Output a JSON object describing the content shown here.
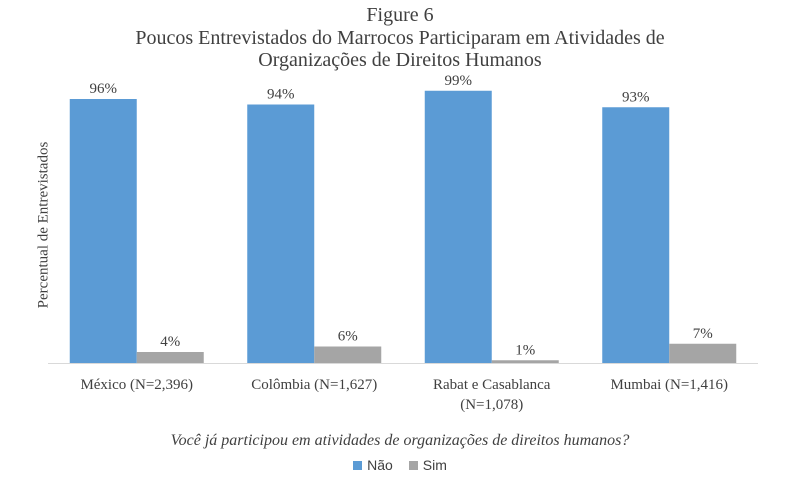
{
  "chart_data": {
    "type": "bar",
    "title": "Figure 6",
    "subtitle_lines": [
      "Poucos Entrevistados do Marrocos Participaram em Atividades  de",
      "Organizações de Direitos Humanos"
    ],
    "ylabel": "Percentual de Entrevistados",
    "xlabel": "Você já participou em atividades de organizações de direitos humanos?",
    "categories": [
      [
        "México (N=2,396)"
      ],
      [
        "Colômbia (N=1,627)"
      ],
      [
        "Rabat e Casablanca",
        "(N=1,078)"
      ],
      [
        "Mumbai (N=1,416)"
      ]
    ],
    "series": [
      {
        "name": "Não",
        "color": "#5b9bd5",
        "values": [
          96,
          94,
          99,
          93
        ],
        "labels": [
          "96%",
          "94%",
          "99%",
          "93%"
        ]
      },
      {
        "name": "Sim",
        "color": "#a5a5a5",
        "values": [
          4,
          6,
          1,
          7
        ],
        "labels": [
          "4%",
          "6%",
          "1%",
          "7%"
        ]
      }
    ],
    "ylim": [
      0,
      100
    ],
    "grid": false,
    "legend_position": "bottom"
  }
}
